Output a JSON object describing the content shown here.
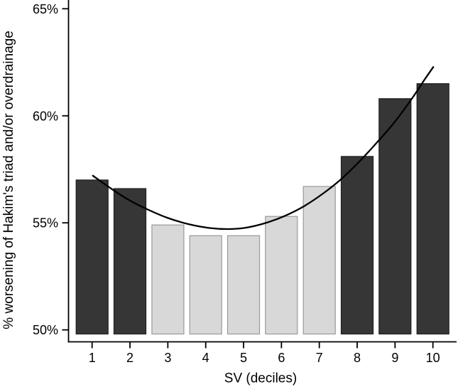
{
  "chart_data": {
    "type": "bar",
    "title": "",
    "xlabel": "SV (deciles)",
    "ylabel": "% worsening of Hakim's triad and/or overdrainage",
    "categories": [
      "1",
      "2",
      "3",
      "4",
      "5",
      "6",
      "7",
      "8",
      "9",
      "10"
    ],
    "values": [
      57.0,
      56.6,
      54.9,
      54.4,
      54.4,
      55.3,
      56.7,
      58.1,
      60.8,
      61.5
    ],
    "bar_groups": [
      "dark",
      "dark",
      "light",
      "light",
      "light",
      "light",
      "light",
      "dark",
      "dark",
      "dark"
    ],
    "y_ticks": [
      {
        "value": 65,
        "label": "65%"
      },
      {
        "value": 60,
        "label": "60%"
      },
      {
        "value": 55,
        "label": "55%"
      },
      {
        "value": 50,
        "label": "50%"
      }
    ],
    "ylim": [
      49.4,
      65.4
    ],
    "grid": "off",
    "legend": "none",
    "trend_curve": {
      "shape": "u-shaped quadratic-like fit",
      "points": [
        [
          1.02,
          57.2
        ],
        [
          1.47,
          56.64
        ],
        [
          1.94,
          56.1
        ],
        [
          2.45,
          55.64
        ],
        [
          2.98,
          55.24
        ],
        [
          3.54,
          54.94
        ],
        [
          4.1,
          54.76
        ],
        [
          4.57,
          54.71
        ],
        [
          5.04,
          54.77
        ],
        [
          5.54,
          54.97
        ],
        [
          6.07,
          55.31
        ],
        [
          6.59,
          55.77
        ],
        [
          7.1,
          56.37
        ],
        [
          7.57,
          57.03
        ],
        [
          8.04,
          57.83
        ],
        [
          8.51,
          58.73
        ],
        [
          8.98,
          59.69
        ],
        [
          9.44,
          60.79
        ],
        [
          9.78,
          61.69
        ],
        [
          10.01,
          62.28
        ]
      ]
    },
    "colors": {
      "bar_dark_fill": "#363636",
      "bar_dark_border": "#1f1f1f",
      "bar_light_fill": "#d8d8d8",
      "bar_light_border": "#999999",
      "curve": "#000000",
      "axis": "#000000"
    }
  }
}
